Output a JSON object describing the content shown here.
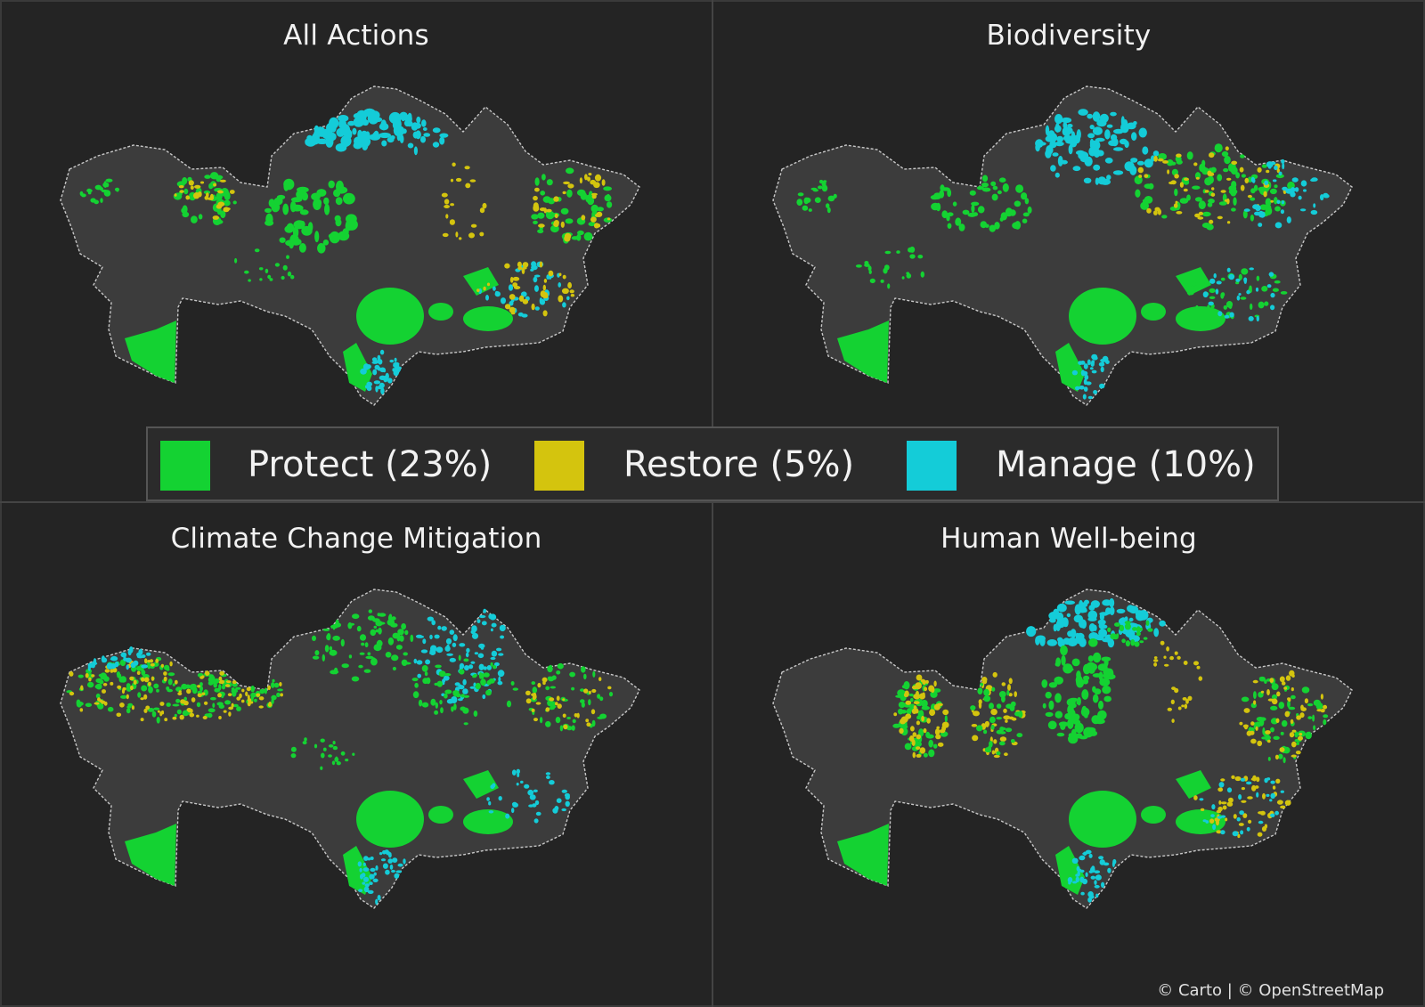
{
  "panels": [
    {
      "id": "all-actions",
      "title": "All Actions"
    },
    {
      "id": "biodiversity",
      "title": "Biodiversity"
    },
    {
      "id": "climate",
      "title": "Climate Change Mitigation"
    },
    {
      "id": "human",
      "title": "Human Well-being"
    }
  ],
  "legend": {
    "protect": {
      "label": "Protect (23%)",
      "color": "#14d232"
    },
    "restore": {
      "label": "Restore (5%)",
      "color": "#d4c40e"
    },
    "manage": {
      "label": "Manage (10%)",
      "color": "#14ccd8"
    }
  },
  "attribution": "© Carto | © OpenStreetMap",
  "colors": {
    "background": "#242424",
    "country": "#3c3c3c",
    "border": "#c8c8c8"
  }
}
